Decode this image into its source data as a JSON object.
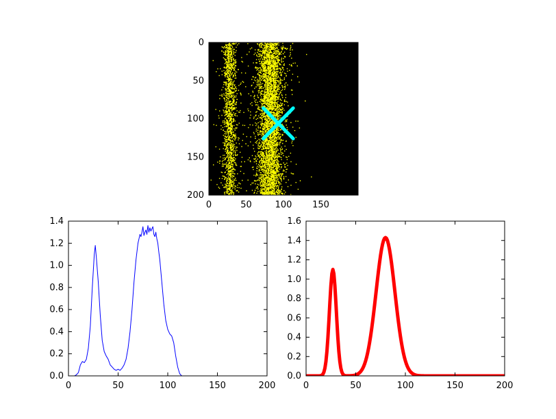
{
  "figure": {
    "background": "#ffffff",
    "frame_color": "#000000",
    "tick_color": "#000000"
  },
  "chart_data": [
    {
      "id": "particle-image",
      "type": "scatter",
      "title": "",
      "xlabel": "",
      "ylabel": "",
      "xlim": [
        0,
        200
      ],
      "ylim": [
        200,
        0
      ],
      "x_tick_values": [
        0,
        50,
        100,
        150
      ],
      "x_tick_labels": [
        "0",
        "50",
        "100",
        "150"
      ],
      "y_tick_values": [
        0,
        50,
        100,
        150,
        200
      ],
      "y_tick_labels": [
        "0",
        "50",
        "100",
        "150",
        "200"
      ],
      "background_color": "#000000",
      "point_color": "#ffff00",
      "bands": [
        {
          "center_x": 28,
          "sigma": 4,
          "count": 1200,
          "outlier_sigma": 9,
          "outlier_count": 260
        },
        {
          "center_x": 82,
          "sigma": 8,
          "count": 3400,
          "outlier_sigma": 17,
          "outlier_count": 650
        }
      ],
      "marker": {
        "symbol": "x",
        "x": 93,
        "y": 106,
        "half_size": 20,
        "color": "#00ffff",
        "stroke_width": 5
      }
    },
    {
      "id": "measured-profile",
      "type": "line",
      "title": "",
      "xlabel": "",
      "ylabel": "",
      "line_color": "#0000ff",
      "line_width": 1,
      "xlim": [
        0,
        200
      ],
      "ylim": [
        0,
        1.4
      ],
      "x_tick_values": [
        0,
        50,
        100,
        150,
        200
      ],
      "x_tick_labels": [
        "0",
        "50",
        "100",
        "150",
        "200"
      ],
      "y_tick_values": [
        0,
        0.2,
        0.4,
        0.6,
        0.8,
        1.0,
        1.2,
        1.4
      ],
      "y_tick_labels": [
        "0.0",
        "0.2",
        "0.4",
        "0.6",
        "0.8",
        "1.0",
        "1.2",
        "1.4"
      ],
      "x": [
        0,
        2,
        4,
        6,
        8,
        10,
        12,
        14,
        16,
        18,
        20,
        22,
        24,
        26,
        27,
        28,
        30,
        32,
        34,
        36,
        38,
        40,
        42,
        44,
        46,
        48,
        50,
        52,
        54,
        56,
        58,
        60,
        62,
        64,
        66,
        68,
        70,
        71,
        72,
        73,
        74,
        75,
        76,
        77,
        78,
        79,
        80,
        81,
        82,
        83,
        84,
        85,
        86,
        87,
        88,
        89,
        90,
        91,
        92,
        94,
        96,
        98,
        100,
        102,
        104,
        106,
        108,
        110,
        112,
        114,
        116,
        120,
        200
      ],
      "y": [
        0,
        0,
        0,
        0,
        0.01,
        0.03,
        0.1,
        0.13,
        0.12,
        0.15,
        0.25,
        0.45,
        0.8,
        1.1,
        1.18,
        1.08,
        0.85,
        0.55,
        0.32,
        0.22,
        0.18,
        0.15,
        0.1,
        0.08,
        0.06,
        0.05,
        0.06,
        0.05,
        0.07,
        0.1,
        0.15,
        0.25,
        0.4,
        0.6,
        0.85,
        1.05,
        1.2,
        1.24,
        1.28,
        1.26,
        1.3,
        1.35,
        1.27,
        1.3,
        1.32,
        1.28,
        1.36,
        1.3,
        1.34,
        1.31,
        1.33,
        1.35,
        1.28,
        1.26,
        1.3,
        1.24,
        1.2,
        1.12,
        1.05,
        0.85,
        0.65,
        0.5,
        0.42,
        0.38,
        0.36,
        0.3,
        0.18,
        0.08,
        0.02,
        0,
        0,
        0,
        0
      ]
    },
    {
      "id": "fitted-profile",
      "type": "line",
      "title": "",
      "xlabel": "",
      "ylabel": "",
      "line_color": "#ff0000",
      "line_width": 5,
      "xlim": [
        0,
        200
      ],
      "ylim": [
        0,
        1.6
      ],
      "x_tick_values": [
        0,
        50,
        100,
        150,
        200
      ],
      "x_tick_labels": [
        "0",
        "50",
        "100",
        "150",
        "200"
      ],
      "y_tick_values": [
        0,
        0.2,
        0.4,
        0.6,
        0.8,
        1.0,
        1.2,
        1.4,
        1.6
      ],
      "y_tick_labels": [
        "0.0",
        "0.2",
        "0.4",
        "0.6",
        "0.8",
        "1.0",
        "1.2",
        "1.4",
        "1.6"
      ],
      "gaussians": [
        {
          "amplitude": 1.1,
          "mean": 27,
          "sigma": 3.5
        },
        {
          "amplitude": 1.43,
          "mean": 80,
          "sigma": 9.5
        }
      ],
      "x_sample_step": 1
    }
  ]
}
